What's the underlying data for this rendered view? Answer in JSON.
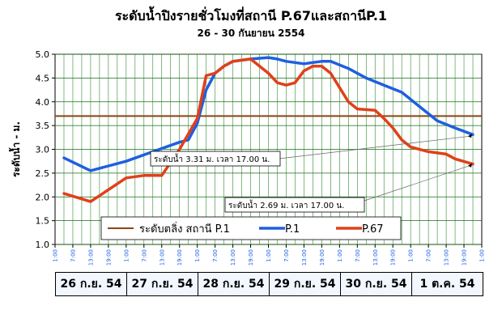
{
  "chart_data": {
    "type": "line",
    "title": "ระดับน้ำปิงรายชั่วโมงที่สถานี P.67และสถานีP.1",
    "subtitle": "26 - 30 กันยายน  2554",
    "ylabel": "ระดับน้ำ - ม.",
    "ylim": [
      1.0,
      5.0
    ],
    "yticks": [
      "1.0",
      "1.5",
      "2.0",
      "2.5",
      "3.0",
      "3.5",
      "4.0",
      "4.5",
      "5.0"
    ],
    "xtick_labels": [
      "1:00",
      "7:00",
      "13:00",
      "19:00",
      "1:00",
      "7:00",
      "13:00",
      "19:00",
      "1:00",
      "7:00",
      "13:00",
      "19:00",
      "1:00",
      "7:00",
      "13:00",
      "19:00",
      "1:00",
      "7:00",
      "13:00",
      "19:00",
      "1:00",
      "7:00",
      "13:00",
      "19:00",
      "1:00"
    ],
    "day_labels": [
      "26 ก.ย. 54",
      "27 ก.ย. 54",
      "28 ก.ย. 54",
      "29 ก.ย. 54",
      "30 ก.ย. 54",
      "1 ต.ค. 54"
    ],
    "reference_line": {
      "name": "ระดับตลิ่ง สถานี P.1",
      "value": 3.7,
      "color": "#8b4513"
    },
    "series": [
      {
        "name": "P.1",
        "color": "#1f5fe0",
        "points": [
          [
            1,
            2.82
          ],
          [
            4,
            2.55
          ],
          [
            8,
            2.75
          ],
          [
            11,
            2.95
          ],
          [
            14,
            3.15
          ],
          [
            15,
            3.2
          ],
          [
            16,
            3.55
          ],
          [
            17,
            4.25
          ],
          [
            18,
            4.6
          ],
          [
            19,
            4.75
          ],
          [
            20,
            4.85
          ],
          [
            22,
            4.9
          ],
          [
            24,
            4.93
          ],
          [
            25,
            4.9
          ],
          [
            26,
            4.85
          ],
          [
            28,
            4.8
          ],
          [
            30,
            4.85
          ],
          [
            31,
            4.85
          ],
          [
            33,
            4.7
          ],
          [
            35,
            4.5
          ],
          [
            37,
            4.35
          ],
          [
            39,
            4.2
          ],
          [
            41,
            3.9
          ],
          [
            43,
            3.6
          ],
          [
            45,
            3.45
          ],
          [
            47,
            3.31
          ]
        ]
      },
      {
        "name": "P.67",
        "color": "#e0401a",
        "points": [
          [
            1,
            2.07
          ],
          [
            4,
            1.9
          ],
          [
            8,
            2.4
          ],
          [
            10,
            2.45
          ],
          [
            12,
            2.45
          ],
          [
            14,
            3.0
          ],
          [
            16,
            3.65
          ],
          [
            17,
            4.55
          ],
          [
            18,
            4.6
          ],
          [
            19,
            4.75
          ],
          [
            20,
            4.85
          ],
          [
            22,
            4.9
          ],
          [
            24,
            4.6
          ],
          [
            25,
            4.4
          ],
          [
            26,
            4.35
          ],
          [
            27,
            4.4
          ],
          [
            28,
            4.65
          ],
          [
            29,
            4.75
          ],
          [
            30,
            4.75
          ],
          [
            31,
            4.6
          ],
          [
            32,
            4.3
          ],
          [
            33,
            4.0
          ],
          [
            34,
            3.85
          ],
          [
            36,
            3.82
          ],
          [
            37,
            3.65
          ],
          [
            38,
            3.45
          ],
          [
            39,
            3.2
          ],
          [
            40,
            3.05
          ],
          [
            42,
            2.95
          ],
          [
            44,
            2.9
          ],
          [
            45,
            2.8
          ],
          [
            47,
            2.69
          ]
        ]
      }
    ],
    "annotations": [
      {
        "text": "ระดับน้ำ 3.31 ม. เวลา 17.00 น."
      },
      {
        "text": "ระดับน้ำ 2.69 ม. เวลา 17.00 น."
      }
    ],
    "legend_position": "bottom"
  }
}
